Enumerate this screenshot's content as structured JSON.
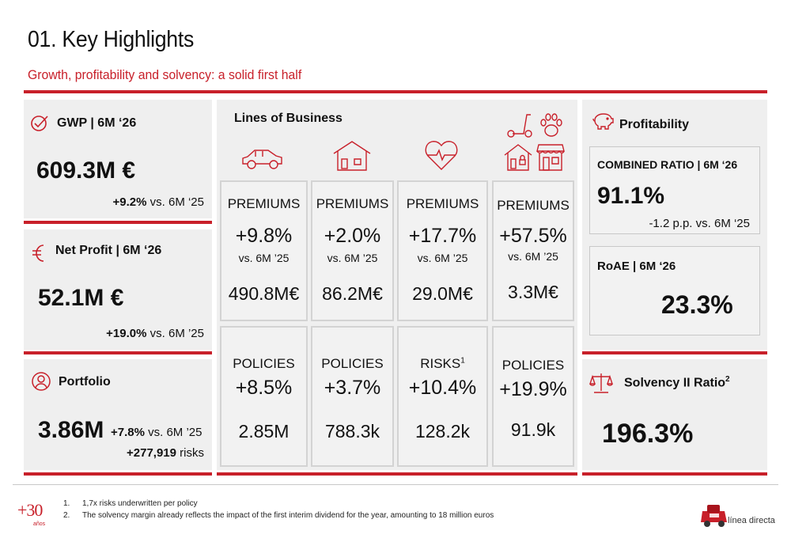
{
  "header": {
    "title": "01. Key Highlights",
    "subtitle": "Growth, profitability and solvency: a solid first half"
  },
  "gwp": {
    "label": "GWP | 6M ‘26",
    "value": "609.3M €",
    "change": "+9.2%",
    "change_suffix": " vs. 6M ‘25"
  },
  "net_profit": {
    "label": "Net Profit | 6M ‘26",
    "value": "52.1M €",
    "change": "+19.0%",
    "change_suffix": " vs. 6M ’25"
  },
  "portfolio": {
    "label": "Portfolio",
    "value": "3.86M",
    "change": "+7.8%",
    "change_suffix": " vs. 6M ’25",
    "risks_count": "+277,919",
    "risks_suffix": " risks"
  },
  "lob": {
    "title": "Lines of Business",
    "icons": [
      "car-icon",
      "home-icon",
      "heart-health-icon",
      "scooter-icon",
      "pet-paw-icon",
      "house-lock-icon",
      "shop-icon"
    ],
    "premiums": [
      {
        "label": "PREMIUMS",
        "pct": "+9.8%",
        "vs": "vs. 6M ’25",
        "value": "490.8M€"
      },
      {
        "label": "PREMIUMS",
        "pct": "+2.0%",
        "vs": "vs. 6M ’25",
        "value": "86.2M€"
      },
      {
        "label": "PREMIUMS",
        "pct": "+17.7%",
        "vs": "vs. 6M ’25",
        "value": "29.0M€"
      },
      {
        "label": "PREMIUMS",
        "pct": "+57.5%",
        "vs": "vs. 6M ’25",
        "value": "3.3M€"
      }
    ],
    "policies": [
      {
        "label": "POLICIES",
        "sup": "",
        "pct": "+8.5%",
        "value": "2.85M"
      },
      {
        "label": "POLICIES",
        "sup": "",
        "pct": "+3.7%",
        "value": "788.3k"
      },
      {
        "label": "RISKS",
        "sup": "1",
        "pct": "+10.4%",
        "value": "128.2k"
      },
      {
        "label": "POLICIES",
        "sup": "",
        "pct": "+19.9%",
        "value": "91.9k"
      }
    ]
  },
  "profitability": {
    "label": "Profitability",
    "cr_label": "COMBINED RATIO | 6M ‘26",
    "cr_value": "91.1%",
    "cr_change": "-1.2 p.p. vs. 6M ‘25",
    "roae_label": "RoAE | 6M ‘26",
    "roae_value": "23.3%"
  },
  "solvency": {
    "label": "Solvency II Ratio",
    "sup": "2",
    "value": "196.3%"
  },
  "footer": {
    "logo30": "+30",
    "logo30_sub": "años",
    "notes": [
      {
        "num": "1.",
        "text": "1,7x risks underwritten per policy"
      },
      {
        "num": "2.",
        "text": "The solvency margin already reflects the impact of the first interim dividend for the year, amounting to 18 million euros"
      }
    ],
    "brand": "línea directa"
  },
  "colors": {
    "accent": "#c8202a",
    "panel": "#efefef",
    "box_border": "#d3d3d3"
  }
}
